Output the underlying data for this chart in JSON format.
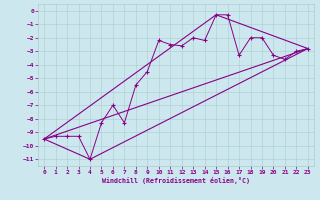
{
  "xlabel": "Windchill (Refroidissement éolien,°C)",
  "background_color": "#cce8ee",
  "grid_color": "#aacccc",
  "line_color": "#880088",
  "xlim": [
    -0.5,
    23.5
  ],
  "ylim": [
    -11.5,
    0.5
  ],
  "x_ticks": [
    0,
    1,
    2,
    3,
    4,
    5,
    6,
    7,
    8,
    9,
    10,
    11,
    12,
    13,
    14,
    15,
    16,
    17,
    18,
    19,
    20,
    21,
    22,
    23
  ],
  "y_ticks": [
    0,
    -1,
    -2,
    -3,
    -4,
    -5,
    -6,
    -7,
    -8,
    -9,
    -10,
    -11
  ],
  "scatter_x": [
    0,
    1,
    2,
    3,
    4,
    5,
    6,
    7,
    8,
    9,
    10,
    11,
    12,
    13,
    14,
    15,
    16,
    17,
    18,
    19,
    20,
    21,
    22,
    23
  ],
  "scatter_y": [
    -9.5,
    -9.3,
    -9.3,
    -9.3,
    -11.0,
    -8.3,
    -7.0,
    -8.3,
    -5.5,
    -4.5,
    -2.2,
    -2.5,
    -2.6,
    -2.0,
    -2.2,
    -0.3,
    -0.3,
    -3.3,
    -2.0,
    -2.0,
    -3.3,
    -3.6,
    -3.0,
    -2.8
  ],
  "line1_x": [
    0,
    23
  ],
  "line1_y": [
    -9.5,
    -2.8
  ],
  "line2_x": [
    0,
    15,
    23
  ],
  "line2_y": [
    -9.5,
    -0.3,
    -2.8
  ],
  "line3_x": [
    0,
    4,
    23
  ],
  "line3_y": [
    -9.5,
    -11.0,
    -2.8
  ]
}
